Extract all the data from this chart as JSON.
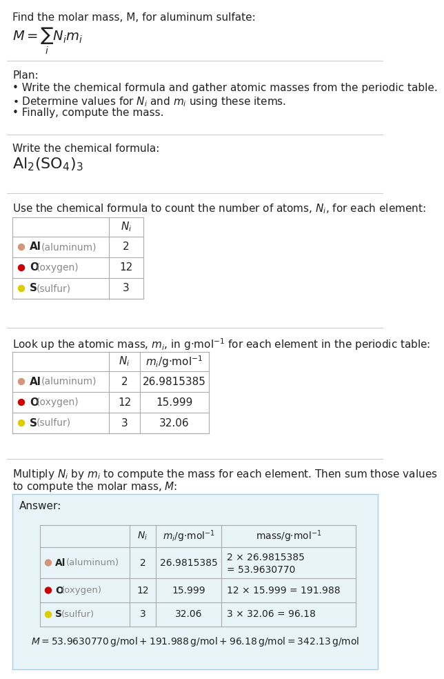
{
  "bg_color": "#ffffff",
  "text_color": "#222222",
  "gray_text_color": "#888888",
  "table_border_color": "#aaaaaa",
  "answer_box_color": "#e8f4f8",
  "answer_box_border": "#aaccdd",
  "divider_color": "#cccccc",
  "title_line": "Find the molar mass, M, for aluminum sulfate:",
  "plan_header": "Plan:",
  "plan_b1": "• Write the chemical formula and gather atomic masses from the periodic table.",
  "plan_b2": "• Determine values for $N_i$ and $m_i$ using these items.",
  "plan_b3": "• Finally, compute the mass.",
  "formula_header": "Write the chemical formula:",
  "count_header": "Use the chemical formula to count the number of atoms, $N_i$, for each element:",
  "lookup_header": "Look up the atomic mass, $m_i$, in g·mol$^{-1}$ for each element in the periodic table:",
  "multiply_header1": "Multiply $N_i$ by $m_i$ to compute the mass for each element. Then sum those values",
  "multiply_header2": "to compute the molar mass, $M$:",
  "answer_label": "Answer:",
  "elements": [
    {
      "symbol": "Al",
      "name": "aluminum",
      "color": "#d4967a",
      "Ni": "2",
      "mi": "26.9815385",
      "mass1": "2 × 26.9815385",
      "mass2": "= 53.9630770"
    },
    {
      "symbol": "O",
      "name": "oxygen",
      "color": "#cc0000",
      "Ni": "12",
      "mi": "15.999",
      "mass1": "12 × 15.999 = 191.988",
      "mass2": ""
    },
    {
      "symbol": "S",
      "name": "sulfur",
      "color": "#ddcc00",
      "Ni": "3",
      "mi": "32.06",
      "mass1": "3 × 32.06 = 96.18",
      "mass2": ""
    }
  ],
  "final_eq": "$M = 53.9630770\\,\\mathrm{g/mol} + 191.988\\,\\mathrm{g/mol} + 96.18\\,\\mathrm{g/mol} = 342.13\\,\\mathrm{g/mol}$"
}
